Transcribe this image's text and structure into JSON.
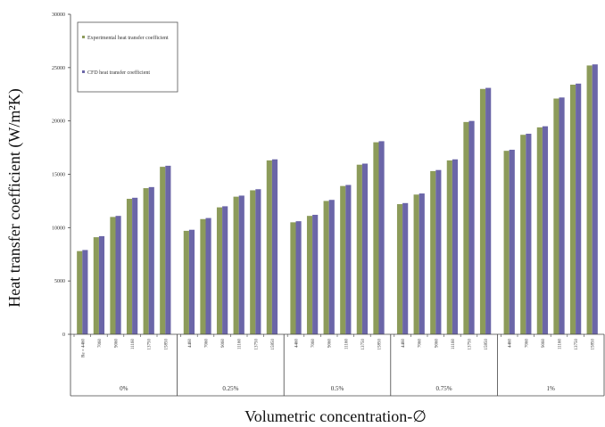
{
  "chart_data": {
    "type": "bar",
    "ylabel": "Heat transfer coefficient (W/m²K)",
    "xlabel": "Volumetric concentration-∅",
    "ylim": [
      0,
      30000
    ],
    "yticks": [
      0,
      5000,
      10000,
      15000,
      20000,
      25000,
      30000
    ],
    "groups": [
      {
        "label": "0%",
        "categories": [
          "Re = 4460",
          "7060",
          "9060",
          "11160",
          "13750",
          "15850"
        ]
      },
      {
        "label": "0.25%",
        "categories": [
          "4460",
          "7060",
          "9060",
          "11160",
          "13750",
          "15850"
        ]
      },
      {
        "label": "0.5%",
        "categories": [
          "4460",
          "7060",
          "9060",
          "11160",
          "13750",
          "15850"
        ]
      },
      {
        "label": "0.75%",
        "categories": [
          "4460",
          "7060",
          "9060",
          "11160",
          "13750",
          "15850"
        ]
      },
      {
        "label": "1%",
        "categories": [
          "4460",
          "7060",
          "9060",
          "11160",
          "13750",
          "15850"
        ]
      }
    ],
    "series": [
      {
        "name": "Experimental heat transfer coefficient",
        "color": "#8c9b5a",
        "values": [
          7800,
          9100,
          11000,
          12700,
          13700,
          15700,
          9700,
          10800,
          11900,
          12900,
          13500,
          16300,
          10500,
          11100,
          12500,
          13900,
          15900,
          18000,
          12200,
          13100,
          15300,
          16300,
          19900,
          23000,
          17200,
          18700,
          19400,
          22100,
          23400,
          25200
        ]
      },
      {
        "name": "CFD heat transfer coefficient",
        "color": "#6b66a8",
        "values": [
          7900,
          9200,
          11100,
          12800,
          13800,
          15800,
          9800,
          10900,
          12000,
          13000,
          13600,
          16400,
          10600,
          11200,
          12600,
          14000,
          16000,
          18100,
          12300,
          13200,
          15400,
          16400,
          20000,
          23100,
          17300,
          18800,
          19500,
          22200,
          23500,
          25300
        ]
      }
    ],
    "legend": {
      "placement": "top-left",
      "entries": [
        "Experimental heat transfer coefficient",
        "CFD heat transfer coefficient"
      ]
    },
    "grid": false
  }
}
